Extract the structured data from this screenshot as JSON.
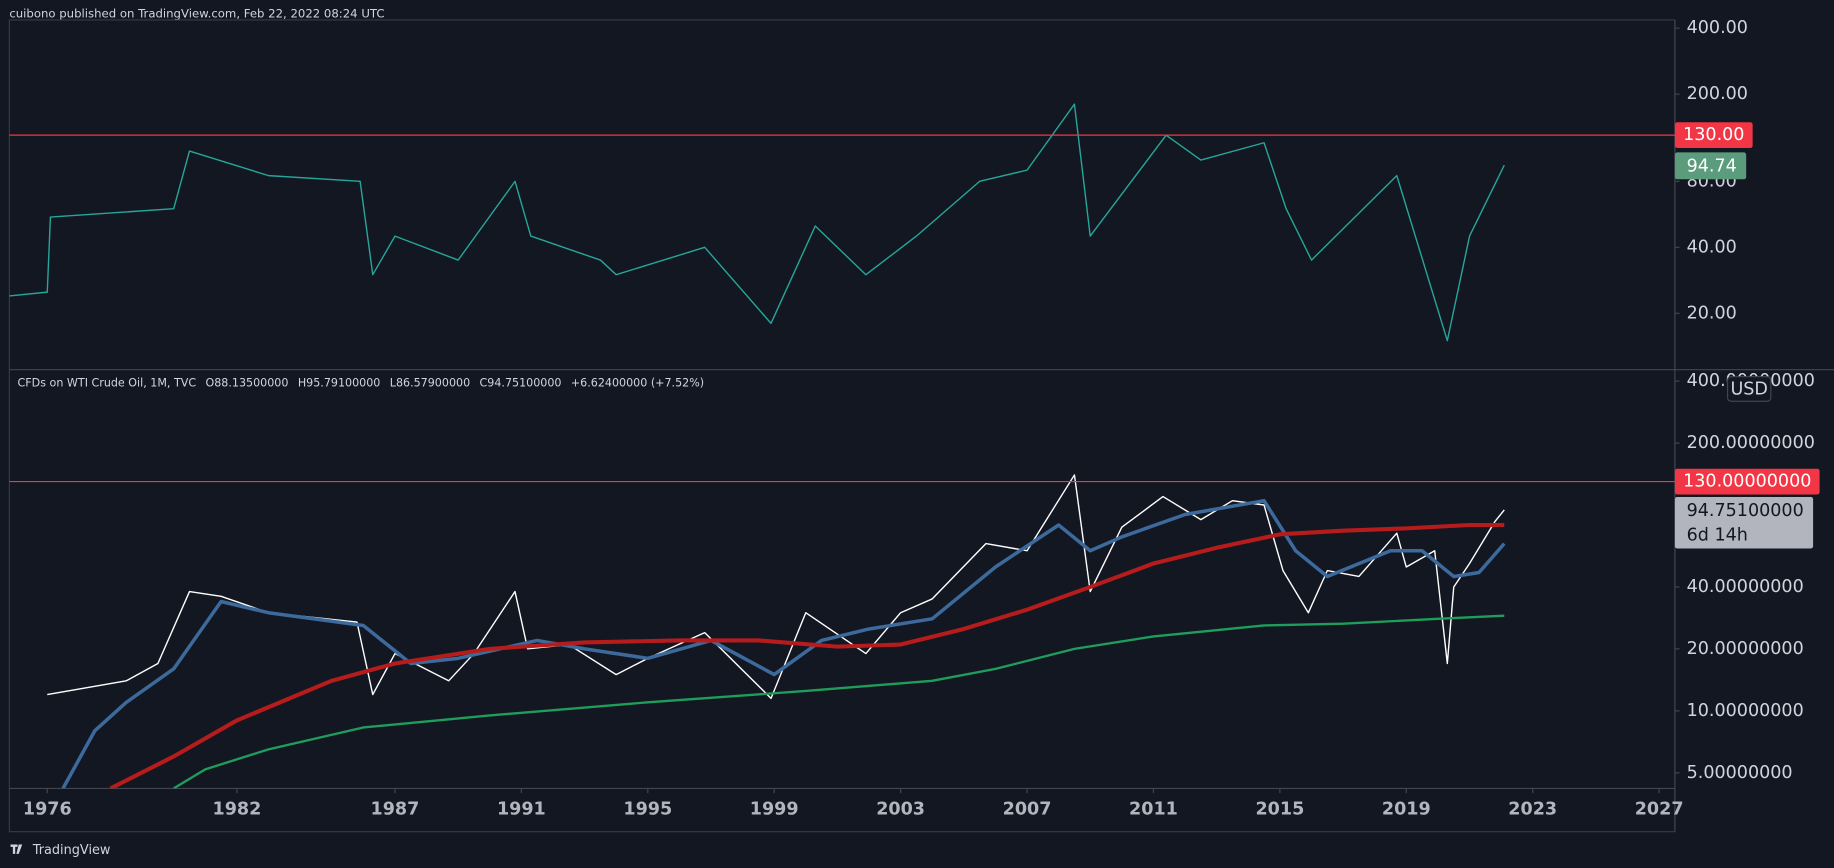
{
  "header": {
    "text": "cuibono published on TradingView.com, Feb 22, 2022 08:24 UTC"
  },
  "footer": {
    "brand": "TradingView"
  },
  "chart_data": [
    {
      "type": "line",
      "log_scale": true,
      "grid": false,
      "color": "#26a69a",
      "xlim": [
        1974.8,
        2027.5
      ],
      "ylim": [
        11.2,
        436
      ],
      "yticks": [
        {
          "value": 400,
          "label": "400.00"
        },
        {
          "value": 200,
          "label": "200.00"
        },
        {
          "value": 80,
          "label": "80.00"
        },
        {
          "value": 40,
          "label": "40.00"
        },
        {
          "value": 20,
          "label": "20.00"
        }
      ],
      "hline": {
        "value": 130,
        "label": "130.00",
        "color": "#f23645"
      },
      "last_price": {
        "value": 94.74,
        "label": "94.74",
        "color": "#5b9c7c"
      },
      "series": [
        {
          "color": "#26a69a",
          "x": [
            1974.8,
            1976,
            1976.1,
            1980,
            1980.5,
            1983,
            1985.9,
            1986.3,
            1987,
            1989,
            1990.8,
            1991.3,
            1993.5,
            1994,
            1996.8,
            1998.9,
            2000.3,
            2001.9,
            2003.5,
            2005.5,
            2007,
            2008.5,
            2009,
            2011.4,
            2012.5,
            2014.5,
            2015.2,
            2016,
            2018.7,
            2020.3,
            2021,
            2022.1
          ],
          "values": [
            24,
            25,
            55,
            60,
            110,
            85,
            80,
            30,
            45,
            35,
            80,
            45,
            35,
            30,
            40,
            18,
            50,
            30,
            45,
            80,
            90,
            180,
            45,
            130,
            100,
            120,
            60,
            35,
            85,
            15,
            45,
            94.74
          ]
        }
      ]
    },
    {
      "type": "line",
      "log_scale": true,
      "grid": false,
      "legend": {
        "symbol": "CFDs on WTI Crude Oil, 1M, TVC",
        "open": "O88.13500000",
        "high": "H95.79100000",
        "low": "L86.57900000",
        "close": "C94.75100000",
        "change": "+6.62400000 (+7.52%)"
      },
      "currency": "USD",
      "xlim": [
        1974.8,
        2027.5
      ],
      "ylim": [
        4.2,
        443
      ],
      "xticks": [
        1976,
        1982,
        1987,
        1991,
        1995,
        1999,
        2003,
        2007,
        2011,
        2015,
        2019,
        2023,
        2027
      ],
      "yticks": [
        {
          "value": 400,
          "label": "400.00000000"
        },
        {
          "value": 200,
          "label": "200.00000000"
        },
        {
          "value": 40,
          "label": "40.00000000"
        },
        {
          "value": 20,
          "label": "20.00000000"
        },
        {
          "value": 10,
          "label": "10.00000000"
        },
        {
          "value": 5,
          "label": "5.00000000"
        }
      ],
      "hline": {
        "value": 130,
        "label": "130.00000000",
        "color": "#f23645"
      },
      "last_price": {
        "value": 94.751,
        "label": "94.75100000",
        "countdown": "6d 14h",
        "color": "#b2b5be"
      },
      "series": [
        {
          "color": "#ffffff",
          "width": 1.2,
          "x": [
            1976,
            1978.5,
            1979.5,
            1980.5,
            1981.5,
            1983,
            1985.8,
            1986.3,
            1987,
            1988.7,
            1989.5,
            1990.8,
            1991.2,
            1992.5,
            1994,
            1995,
            1996.8,
            1998.9,
            2000,
            2001.9,
            2003,
            2004,
            2005.7,
            2007,
            2008.5,
            2009,
            2010,
            2011.3,
            2012.5,
            2013.5,
            2014.5,
            2015.1,
            2015.9,
            2016.5,
            2017.5,
            2018.7,
            2019,
            2019.9,
            2020.3,
            2020.5,
            2021,
            2021.8,
            2022.1
          ],
          "values": [
            12,
            14,
            17,
            38,
            36,
            30,
            27,
            12,
            19,
            14,
            19,
            38,
            20,
            21,
            15,
            18,
            24,
            11.5,
            30,
            19,
            30,
            35,
            65,
            60,
            140,
            38,
            78,
            110,
            85,
            105,
            100,
            48,
            30,
            48,
            45,
            73,
            50,
            60,
            17,
            40,
            52,
            83,
            94.751
          ]
        },
        {
          "color": "#3d6a9c",
          "width": 3,
          "x": [
            1976.5,
            1977.5,
            1978.5,
            1980,
            1981.5,
            1983,
            1986,
            1987.5,
            1989,
            1991.5,
            1993,
            1995,
            1997,
            1999,
            2000.5,
            2002,
            2004,
            2006,
            2008,
            2009,
            2010,
            2012,
            2014.5,
            2015.5,
            2016.5,
            2018.5,
            2019.5,
            2020.5,
            2021.3,
            2022.1
          ],
          "values": [
            4.2,
            8,
            11,
            16,
            34,
            30,
            26,
            17,
            18,
            22,
            20,
            18,
            22,
            15,
            22,
            25,
            28,
            50,
            80,
            60,
            70,
            90,
            105,
            60,
            45,
            60,
            60,
            45,
            47,
            65
          ]
        },
        {
          "color": "#b71c1c",
          "width": 3.5,
          "x": [
            1978,
            1980,
            1982,
            1985,
            1987,
            1990,
            1993,
            1996,
            1998.5,
            2001,
            2003,
            2005,
            2007,
            2009,
            2011,
            2013,
            2015,
            2017,
            2019,
            2021,
            2022.1
          ],
          "values": [
            4.2,
            6,
            9,
            14,
            17,
            20,
            21.5,
            22,
            22,
            20.5,
            21,
            25,
            31,
            40,
            52,
            62,
            72,
            75,
            77,
            80,
            80
          ]
        },
        {
          "color": "#1e9e5a",
          "width": 2,
          "x": [
            1980,
            1981,
            1983,
            1986,
            1990,
            1995,
            2000,
            2004,
            2006,
            2008.5,
            2011,
            2014.5,
            2017,
            2020,
            2022.1
          ],
          "values": [
            4.2,
            5.2,
            6.5,
            8.3,
            9.5,
            11,
            12.5,
            14,
            16,
            20,
            23,
            26,
            26.5,
            28,
            29
          ]
        }
      ]
    }
  ]
}
